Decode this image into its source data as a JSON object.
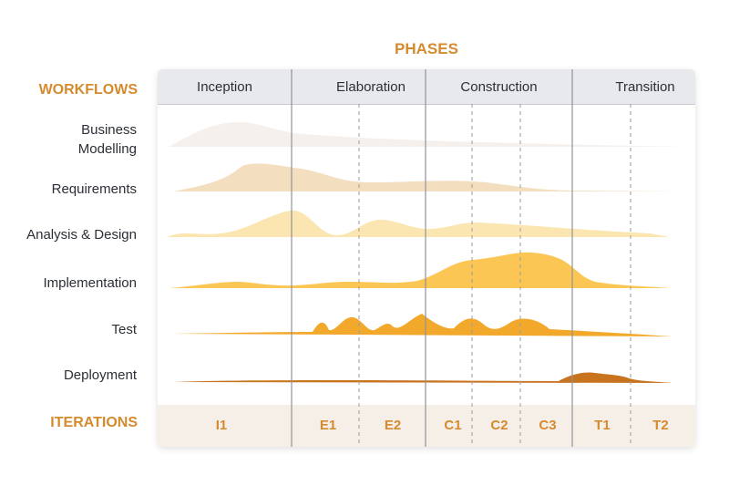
{
  "phases_title": "PHASES",
  "workflows_heading": "WORKFLOWS",
  "iterations_heading": "ITERATIONS",
  "phases": [
    "Inception",
    "Elaboration",
    "Construction",
    "Transition"
  ],
  "workflows": [
    {
      "label": "Business\nModelling",
      "color": "#f5f0ec"
    },
    {
      "label": "Requirements",
      "color": "#f3dfc0"
    },
    {
      "label": "Analysis & Design",
      "color": "#fbe6b2"
    },
    {
      "label": "Implementation",
      "color": "#fbc654"
    },
    {
      "label": "Test",
      "color": "#f2a82a"
    },
    {
      "label": "Deployment",
      "color": "#c8731e"
    }
  ],
  "iterations": [
    "I1",
    "E1",
    "E2",
    "C1",
    "C2",
    "C3",
    "T1",
    "T2"
  ],
  "colors": {
    "accent": "#d68a2e",
    "header_bg": "#e8e9ec",
    "iteration_bg": "#f6efe8",
    "divider": "#8f939a"
  }
}
